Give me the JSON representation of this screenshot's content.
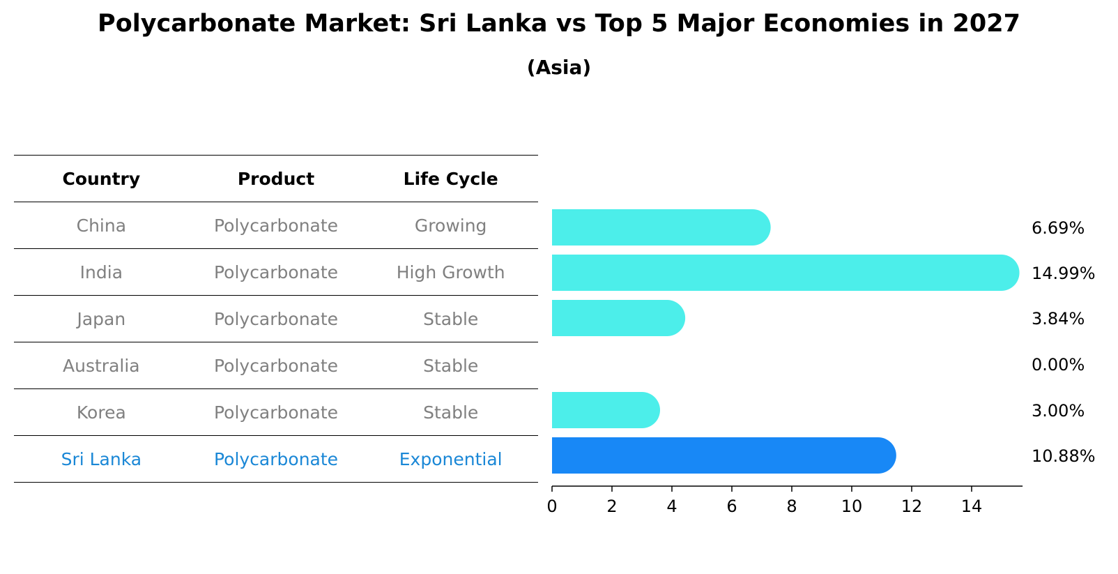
{
  "title": "Polycarbonate Market: Sri Lanka vs Top 5 Major Economies in 2027",
  "subtitle": "(Asia)",
  "table": {
    "headers": [
      "Country",
      "Product",
      "Life Cycle"
    ],
    "rows": [
      [
        "China",
        "Polycarbonate",
        "Growing"
      ],
      [
        "India",
        "Polycarbonate",
        "High Growth"
      ],
      [
        "Japan",
        "Polycarbonate",
        "Stable"
      ],
      [
        "Australia",
        "Polycarbonate",
        "Stable"
      ],
      [
        "Korea",
        "Polycarbonate",
        "Stable"
      ],
      [
        "Sri Lanka",
        "Polycarbonate",
        "Exponential"
      ]
    ],
    "highlight_row": 5
  },
  "chart_data": {
    "type": "bar",
    "orientation": "horizontal",
    "categories": [
      "China",
      "India",
      "Japan",
      "Australia",
      "Korea",
      "Sri Lanka"
    ],
    "values": [
      6.69,
      14.99,
      3.84,
      0.0,
      3.0,
      10.88
    ],
    "value_labels": [
      "6.69%",
      "14.99%",
      "3.84%",
      "0.00%",
      "3.00%",
      "10.88%"
    ],
    "xlim": [
      0,
      15.7
    ],
    "xticks": [
      0,
      2,
      4,
      6,
      8,
      10,
      12,
      14
    ],
    "colors": {
      "default": "#4ceeea",
      "highlight": "#1888f6"
    },
    "highlight_index": 5
  }
}
